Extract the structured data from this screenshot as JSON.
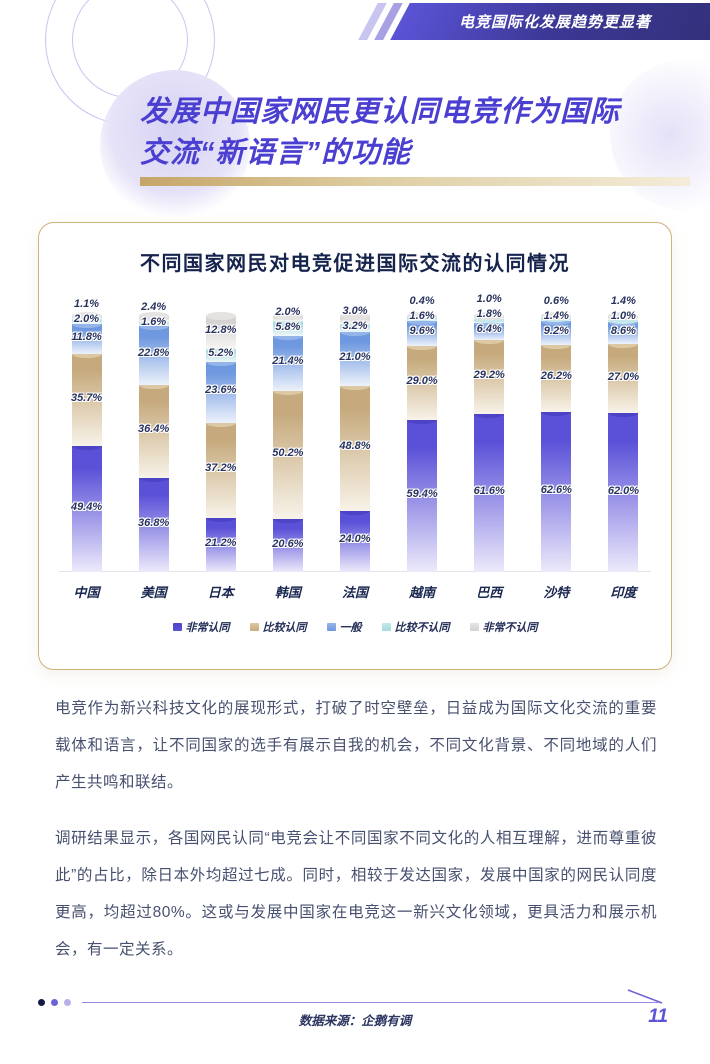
{
  "banner": {
    "label": "电竞国际化发展趋势更显著"
  },
  "title": {
    "line1": "发展中国家网民更认同电竞作为国际",
    "line2": "交流“新语言”的功能"
  },
  "chart": {
    "title": "不同国家网民对电竞促进国际交流的认同情况"
  },
  "chart_data": {
    "type": "bar",
    "stacked": true,
    "unit": "%",
    "title": "不同国家网民对电竞促进国际交流的认同情况",
    "categories": [
      "中国",
      "美国",
      "日本",
      "韩国",
      "法国",
      "越南",
      "巴西",
      "沙特",
      "印度"
    ],
    "series": [
      {
        "name": "非常认同",
        "color": "#5B51D8",
        "cap_color": "#4C43C6",
        "fade_color": "#ECEAFB",
        "values": [
          49.4,
          36.8,
          21.2,
          20.6,
          24.0,
          59.4,
          61.6,
          62.6,
          62.0
        ]
      },
      {
        "name": "比较认同",
        "color": "#C6AA7D",
        "cap_color": "#DCC9A3",
        "fade_color": "#F8F3E9",
        "values": [
          35.7,
          36.4,
          37.2,
          50.2,
          48.8,
          29.0,
          29.2,
          26.2,
          27.0
        ]
      },
      {
        "name": "一般",
        "color": "#6E98DF",
        "cap_color": "#95B5EA",
        "fade_color": "#EDF2FB",
        "values": [
          11.8,
          22.8,
          23.6,
          21.4,
          21.0,
          9.6,
          6.4,
          9.2,
          8.6
        ]
      },
      {
        "name": "比较不认同",
        "color": "#A7D9DF",
        "cap_color": "#C6E8EB",
        "fade_color": "#F1F9FA",
        "values": [
          2.0,
          1.6,
          5.2,
          5.8,
          3.2,
          1.6,
          1.8,
          1.4,
          1.0
        ]
      },
      {
        "name": "非常不认同",
        "color": "#D5D3D1",
        "cap_color": "#E5E3E1",
        "fade_color": "#F7F6F5",
        "values": [
          1.1,
          2.4,
          12.8,
          2.0,
          3.0,
          0.4,
          1.0,
          0.6,
          1.4
        ]
      }
    ],
    "ylim": [
      0,
      100
    ],
    "legend_position": "bottom",
    "value_label_format": "{value}%"
  },
  "paragraphs": [
    "电竞作为新兴科技文化的展现形式，打破了时空壁垒，日益成为国际文化交流的重要载体和语言，让不同国家的选手有展示自我的机会，不同文化背景、不同地域的人们产生共鸣和联结。",
    "调研结果显示，各国网民认同“电竞会让不同国家不同文化的人相互理解，进而尊重彼此”的占比，除日本外均超过七成。同时，相较于发达国家，发展中国家的网民认同度更高，均超过80%。这或与发展中国家在电竞这一新兴文化领域，更具活力和展示机会，有一定关系。"
  ],
  "footer": {
    "source": "数据来源：企鹅有调",
    "page_number": "11"
  },
  "colors": {
    "accent_purple": "#4A3FD0",
    "banner_gradient_start": "#5A54D6",
    "banner_gradient_end": "#323078",
    "gold_accent": "#CDB280",
    "navy_text": "#15234D",
    "body_text": "#47506F"
  }
}
